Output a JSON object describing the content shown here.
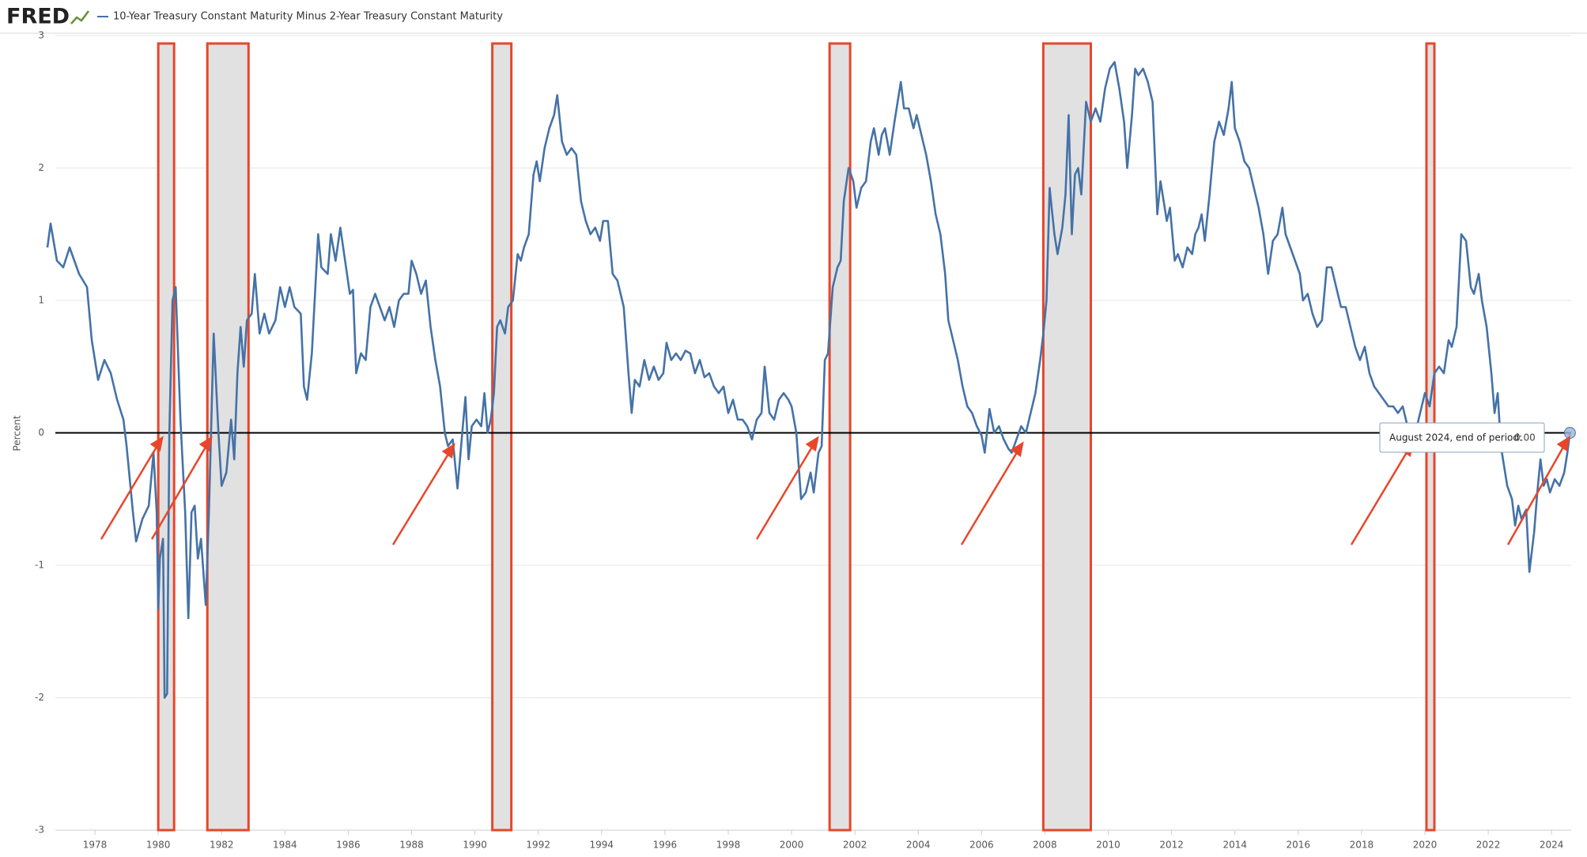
{
  "logo": "FRED",
  "chart_data": {
    "type": "line",
    "y_label": "Percent",
    "x": [
      1976.5,
      1976.6,
      1976.8,
      1977.0,
      1977.2,
      1977.5,
      1977.75,
      1977.9,
      1978.1,
      1978.3,
      1978.5,
      1978.7,
      1978.9,
      1979.0,
      1979.2,
      1979.3,
      1979.5,
      1979.7,
      1979.85,
      1979.95,
      1980.0,
      1980.05,
      1980.15,
      1980.2,
      1980.28,
      1980.35,
      1980.45,
      1980.55,
      1980.7,
      1980.85,
      1980.95,
      1981.05,
      1981.15,
      1981.25,
      1981.35,
      1981.5,
      1981.6,
      1981.75,
      1981.9,
      1982.0,
      1982.15,
      1982.3,
      1982.4,
      1982.5,
      1982.6,
      1982.7,
      1982.8,
      1982.95,
      1983.05,
      1983.2,
      1983.35,
      1983.5,
      1983.7,
      1983.85,
      1984.0,
      1984.15,
      1984.3,
      1984.5,
      1984.6,
      1984.7,
      1984.85,
      1985.05,
      1985.15,
      1985.35,
      1985.45,
      1985.6,
      1985.75,
      1985.9,
      1986.05,
      1986.15,
      1986.25,
      1986.4,
      1986.55,
      1986.7,
      1986.85,
      1987.0,
      1987.15,
      1987.3,
      1987.45,
      1987.6,
      1987.75,
      1987.9,
      1988.0,
      1988.15,
      1988.3,
      1988.45,
      1988.6,
      1988.75,
      1988.9,
      1989.05,
      1989.15,
      1989.3,
      1989.45,
      1989.6,
      1989.7,
      1989.8,
      1989.9,
      1990.05,
      1990.2,
      1990.3,
      1990.4,
      1990.5,
      1990.6,
      1990.7,
      1990.8,
      1990.95,
      1991.05,
      1991.2,
      1991.35,
      1991.45,
      1991.55,
      1991.7,
      1991.85,
      1991.95,
      1992.05,
      1992.2,
      1992.35,
      1992.5,
      1992.6,
      1992.75,
      1992.9,
      1993.05,
      1993.2,
      1993.35,
      1993.5,
      1993.65,
      1993.8,
      1993.95,
      1994.05,
      1994.2,
      1994.35,
      1994.5,
      1994.7,
      1994.85,
      1994.95,
      1995.05,
      1995.2,
      1995.35,
      1995.5,
      1995.65,
      1995.8,
      1995.95,
      1996.05,
      1996.2,
      1996.35,
      1996.5,
      1996.65,
      1996.8,
      1996.95,
      1997.1,
      1997.25,
      1997.4,
      1997.55,
      1997.7,
      1997.85,
      1998.0,
      1998.15,
      1998.3,
      1998.45,
      1998.6,
      1998.75,
      1998.9,
      1999.05,
      1999.15,
      1999.3,
      1999.45,
      1999.6,
      1999.75,
      1999.9,
      2000.0,
      2000.15,
      2000.3,
      2000.45,
      2000.6,
      2000.7,
      2000.85,
      2000.95,
      2001.05,
      2001.15,
      2001.3,
      2001.45,
      2001.55,
      2001.65,
      2001.8,
      2001.95,
      2002.05,
      2002.2,
      2002.35,
      2002.5,
      2002.6,
      2002.75,
      2002.85,
      2002.95,
      2003.1,
      2003.25,
      2003.45,
      2003.55,
      2003.7,
      2003.85,
      2003.95,
      2004.1,
      2004.25,
      2004.4,
      2004.55,
      2004.7,
      2004.85,
      2004.95,
      2005.1,
      2005.25,
      2005.4,
      2005.55,
      2005.7,
      2005.85,
      2006.0,
      2006.1,
      2006.25,
      2006.4,
      2006.55,
      2006.7,
      2006.85,
      2006.95,
      2007.1,
      2007.25,
      2007.4,
      2007.55,
      2007.7,
      2007.85,
      2007.95,
      2008.05,
      2008.15,
      2008.3,
      2008.4,
      2008.55,
      2008.65,
      2008.75,
      2008.85,
      2008.95,
      2009.05,
      2009.15,
      2009.3,
      2009.45,
      2009.6,
      2009.75,
      2009.9,
      2010.05,
      2010.2,
      2010.35,
      2010.5,
      2010.6,
      2010.75,
      2010.85,
      2010.95,
      2011.1,
      2011.25,
      2011.4,
      2011.55,
      2011.65,
      2011.75,
      2011.85,
      2011.95,
      2012.1,
      2012.2,
      2012.35,
      2012.5,
      2012.65,
      2012.75,
      2012.85,
      2012.95,
      2013.05,
      2013.2,
      2013.35,
      2013.5,
      2013.65,
      2013.8,
      2013.9,
      2014.0,
      2014.15,
      2014.3,
      2014.45,
      2014.6,
      2014.75,
      2014.9,
      2015.05,
      2015.2,
      2015.35,
      2015.5,
      2015.6,
      2015.75,
      2015.9,
      2016.05,
      2016.15,
      2016.3,
      2016.45,
      2016.6,
      2016.75,
      2016.9,
      2017.05,
      2017.2,
      2017.35,
      2017.5,
      2017.65,
      2017.8,
      2017.95,
      2018.1,
      2018.25,
      2018.4,
      2018.55,
      2018.7,
      2018.85,
      2019.0,
      2019.15,
      2019.3,
      2019.45,
      2019.6,
      2019.7,
      2019.85,
      2020.0,
      2020.15,
      2020.3,
      2020.45,
      2020.6,
      2020.75,
      2020.85,
      2021.0,
      2021.15,
      2021.3,
      2021.45,
      2021.55,
      2021.7,
      2021.8,
      2021.95,
      2022.1,
      2022.2,
      2022.3,
      2022.4,
      2022.5,
      2022.6,
      2022.75,
      2022.85,
      2022.95,
      2023.05,
      2023.2,
      2023.3,
      2023.45,
      2023.55,
      2023.65,
      2023.75,
      2023.85,
      2023.95,
      2024.1,
      2024.25,
      2024.4,
      2024.5,
      2024.58
    ],
    "series": [
      {
        "name": "10-Year Treasury Constant Maturity Minus 2-Year Treasury Constant Maturity",
        "color": "#4572a7",
        "values": [
          1.4,
          1.58,
          1.3,
          1.25,
          1.4,
          1.2,
          1.1,
          0.7,
          0.4,
          0.55,
          0.45,
          0.25,
          0.1,
          -0.1,
          -0.6,
          -0.82,
          -0.65,
          -0.55,
          -0.15,
          -0.6,
          -1.33,
          -0.95,
          -0.8,
          -2.0,
          -1.97,
          0.0,
          1.0,
          1.1,
          0.1,
          -0.6,
          -1.4,
          -0.6,
          -0.55,
          -0.95,
          -0.8,
          -1.3,
          -0.6,
          0.75,
          0.0,
          -0.4,
          -0.3,
          0.1,
          -0.2,
          0.45,
          0.8,
          0.5,
          0.85,
          0.9,
          1.2,
          0.75,
          0.9,
          0.75,
          0.85,
          1.1,
          0.95,
          1.1,
          0.95,
          0.9,
          0.35,
          0.25,
          0.6,
          1.5,
          1.25,
          1.2,
          1.5,
          1.3,
          1.55,
          1.3,
          1.05,
          1.08,
          0.45,
          0.6,
          0.55,
          0.95,
          1.05,
          0.95,
          0.85,
          0.95,
          0.8,
          1.0,
          1.05,
          1.05,
          1.3,
          1.2,
          1.05,
          1.15,
          0.8,
          0.55,
          0.35,
          0.0,
          -0.1,
          -0.05,
          -0.42,
          0.0,
          0.27,
          -0.2,
          0.05,
          0.1,
          0.05,
          0.3,
          0.0,
          0.1,
          0.3,
          0.8,
          0.85,
          0.75,
          0.95,
          1.0,
          1.35,
          1.3,
          1.4,
          1.5,
          1.95,
          2.05,
          1.9,
          2.15,
          2.3,
          2.4,
          2.55,
          2.2,
          2.1,
          2.15,
          2.1,
          1.75,
          1.6,
          1.5,
          1.55,
          1.45,
          1.6,
          1.6,
          1.2,
          1.15,
          0.95,
          0.45,
          0.15,
          0.4,
          0.35,
          0.55,
          0.4,
          0.5,
          0.4,
          0.45,
          0.68,
          0.55,
          0.6,
          0.55,
          0.62,
          0.6,
          0.45,
          0.55,
          0.42,
          0.45,
          0.35,
          0.3,
          0.35,
          0.15,
          0.25,
          0.1,
          0.1,
          0.05,
          -0.05,
          0.1,
          0.15,
          0.5,
          0.15,
          0.1,
          0.25,
          0.3,
          0.25,
          0.2,
          0.0,
          -0.5,
          -0.45,
          -0.3,
          -0.45,
          -0.15,
          -0.1,
          0.55,
          0.6,
          1.1,
          1.25,
          1.3,
          1.75,
          2.0,
          1.9,
          1.7,
          1.85,
          1.9,
          2.2,
          2.3,
          2.1,
          2.25,
          2.3,
          2.1,
          2.35,
          2.65,
          2.45,
          2.45,
          2.3,
          2.4,
          2.25,
          2.1,
          1.9,
          1.65,
          1.5,
          1.2,
          0.85,
          0.7,
          0.55,
          0.35,
          0.2,
          0.15,
          0.05,
          -0.02,
          -0.15,
          0.18,
          0.0,
          0.05,
          -0.05,
          -0.12,
          -0.15,
          -0.05,
          0.05,
          0.0,
          0.15,
          0.3,
          0.55,
          0.75,
          1.0,
          1.85,
          1.5,
          1.35,
          1.55,
          1.8,
          2.4,
          1.5,
          1.95,
          2.0,
          1.8,
          2.5,
          2.35,
          2.45,
          2.35,
          2.6,
          2.75,
          2.8,
          2.6,
          2.35,
          2.0,
          2.4,
          2.75,
          2.7,
          2.75,
          2.65,
          2.5,
          1.65,
          1.9,
          1.75,
          1.6,
          1.7,
          1.3,
          1.35,
          1.25,
          1.4,
          1.35,
          1.5,
          1.55,
          1.65,
          1.45,
          1.8,
          2.2,
          2.35,
          2.25,
          2.45,
          2.65,
          2.3,
          2.2,
          2.05,
          2.0,
          1.85,
          1.7,
          1.5,
          1.2,
          1.45,
          1.5,
          1.7,
          1.5,
          1.4,
          1.3,
          1.2,
          1.0,
          1.05,
          0.9,
          0.8,
          0.85,
          1.25,
          1.25,
          1.1,
          0.95,
          0.95,
          0.8,
          0.65,
          0.55,
          0.65,
          0.45,
          0.35,
          0.3,
          0.25,
          0.2,
          0.2,
          0.15,
          0.2,
          0.05,
          0.0,
          0.0,
          0.15,
          0.3,
          0.2,
          0.45,
          0.5,
          0.45,
          0.7,
          0.65,
          0.8,
          1.5,
          1.45,
          1.1,
          1.05,
          1.2,
          1.0,
          0.8,
          0.45,
          0.15,
          0.3,
          -0.1,
          -0.25,
          -0.4,
          -0.5,
          -0.7,
          -0.55,
          -0.65,
          -0.58,
          -1.05,
          -0.75,
          -0.45,
          -0.2,
          -0.4,
          -0.35,
          -0.45,
          -0.35,
          -0.4,
          -0.3,
          -0.15,
          0.0
        ]
      }
    ],
    "xlim": [
      1976.75,
      2024.62
    ],
    "xticks": [
      1978,
      1980,
      1982,
      1984,
      1986,
      1988,
      1990,
      1992,
      1994,
      1996,
      1998,
      2000,
      2002,
      2004,
      2006,
      2008,
      2010,
      2012,
      2014,
      2016,
      2018,
      2020,
      2022,
      2024
    ],
    "ylim": [
      -3,
      3
    ],
    "yticks": [
      -3,
      -2,
      -1,
      0,
      1,
      2,
      3
    ],
    "grid": true,
    "reference_line": 0,
    "recessions": [
      [
        1980.0,
        1980.5
      ],
      [
        1981.55,
        1982.85
      ],
      [
        1990.55,
        1991.15
      ],
      [
        2001.2,
        2001.85
      ],
      [
        2007.95,
        2009.45
      ],
      [
        2020.05,
        2020.3
      ]
    ],
    "recession_color": "#e1e1e1",
    "highlight_color": "#e8462a",
    "tooltip": {
      "label": "August 2024, end of period:",
      "value": "0.00"
    }
  }
}
